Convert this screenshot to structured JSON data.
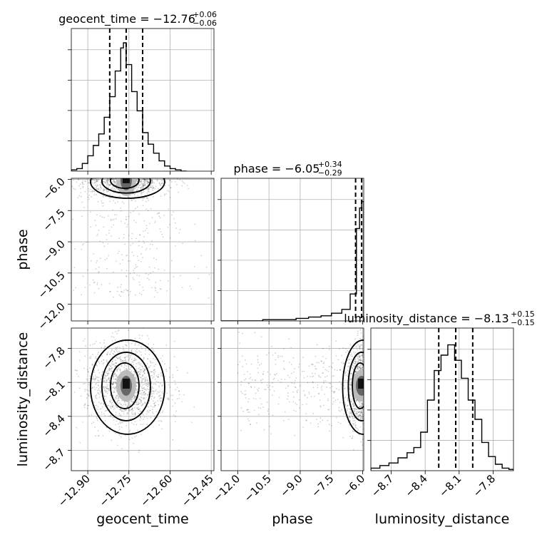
{
  "chart_data": {
    "type": "corner",
    "parameters": [
      "geocent_time",
      "phase",
      "luminosity_distance"
    ],
    "axis_labels": {
      "x": [
        "geocent_time",
        "phase",
        "luminosity_distance"
      ],
      "y": [
        "phase",
        "luminosity_distance"
      ]
    },
    "ranges": {
      "geocent_time": [
        -12.96,
        -12.44
      ],
      "phase": [
        -12.8,
        -5.95
      ],
      "luminosity_distance": [
        -8.88,
        -7.62
      ]
    },
    "ticks": {
      "geocent_time": [
        -12.9,
        -12.75,
        -12.6,
        -12.45
      ],
      "phase": [
        -12.0,
        -10.5,
        -9.0,
        -7.5,
        -6.0
      ],
      "luminosity_distance": [
        -8.7,
        -8.4,
        -8.1,
        -7.8
      ]
    },
    "tick_labels": {
      "geocent_time": [
        "−12.90",
        "−12.75",
        "−12.60",
        "−12.45"
      ],
      "phase": [
        "−12.0",
        "−10.5",
        "−9.0",
        "−7.5",
        "−6.0"
      ],
      "luminosity_distance": [
        "−8.7",
        "−8.4",
        "−8.1",
        "−7.8"
      ]
    },
    "titles": [
      {
        "param": "geocent_time",
        "prefix": "geocent_time = −12.76",
        "sup": "+0.06",
        "sub": "−0.06"
      },
      {
        "param": "phase",
        "prefix": "phase = −6.05",
        "sup": "+0.34",
        "sub": "−0.29"
      },
      {
        "param": "luminosity_distance",
        "prefix": "luminosity_distance = −8.13",
        "sup": "+0.15",
        "sub": "−0.15"
      }
    ],
    "quantiles": {
      "geocent_time": [
        -12.82,
        -12.76,
        -12.7
      ],
      "phase": [
        -6.34,
        -6.05,
        -5.76
      ],
      "luminosity_distance": [
        -8.28,
        -8.13,
        -7.98
      ]
    },
    "histograms": {
      "geocent_time": {
        "bin_edges": [
          -12.96,
          -12.94,
          -12.92,
          -12.9,
          -12.88,
          -12.86,
          -12.84,
          -12.82,
          -12.8,
          -12.78,
          -12.77,
          -12.76,
          -12.74,
          -12.72,
          -12.7,
          -12.68,
          -12.66,
          -12.64,
          -12.62,
          -12.6,
          -12.58,
          -12.56,
          -12.54
        ],
        "counts": [
          0.01,
          0.02,
          0.06,
          0.12,
          0.2,
          0.29,
          0.42,
          0.58,
          0.78,
          0.96,
          1.0,
          0.83,
          0.62,
          0.47,
          0.3,
          0.21,
          0.14,
          0.08,
          0.04,
          0.02,
          0.01,
          0.0
        ]
      },
      "phase": {
        "bin_edges": [
          -12.8,
          -11.8,
          -10.8,
          -9.8,
          -9.2,
          -8.6,
          -8.0,
          -7.5,
          -7.0,
          -6.6,
          -6.3,
          -6.15,
          -6.05,
          -5.95
        ],
        "counts": [
          0.0,
          0.0,
          0.01,
          0.01,
          0.02,
          0.03,
          0.04,
          0.06,
          0.09,
          0.21,
          0.72,
          0.88,
          0.93
        ]
      },
      "luminosity_distance": {
        "bin_edges": [
          -8.88,
          -8.8,
          -8.72,
          -8.64,
          -8.56,
          -8.5,
          -8.44,
          -8.38,
          -8.32,
          -8.26,
          -8.2,
          -8.14,
          -8.08,
          -8.02,
          -7.96,
          -7.9,
          -7.84,
          -7.78,
          -7.72,
          -7.66,
          -7.62
        ],
        "counts": [
          0.02,
          0.04,
          0.06,
          0.1,
          0.14,
          0.18,
          0.3,
          0.55,
          0.78,
          0.9,
          0.98,
          0.86,
          0.72,
          0.55,
          0.4,
          0.22,
          0.11,
          0.05,
          0.02,
          0.01
        ]
      }
    },
    "grid": true
  }
}
